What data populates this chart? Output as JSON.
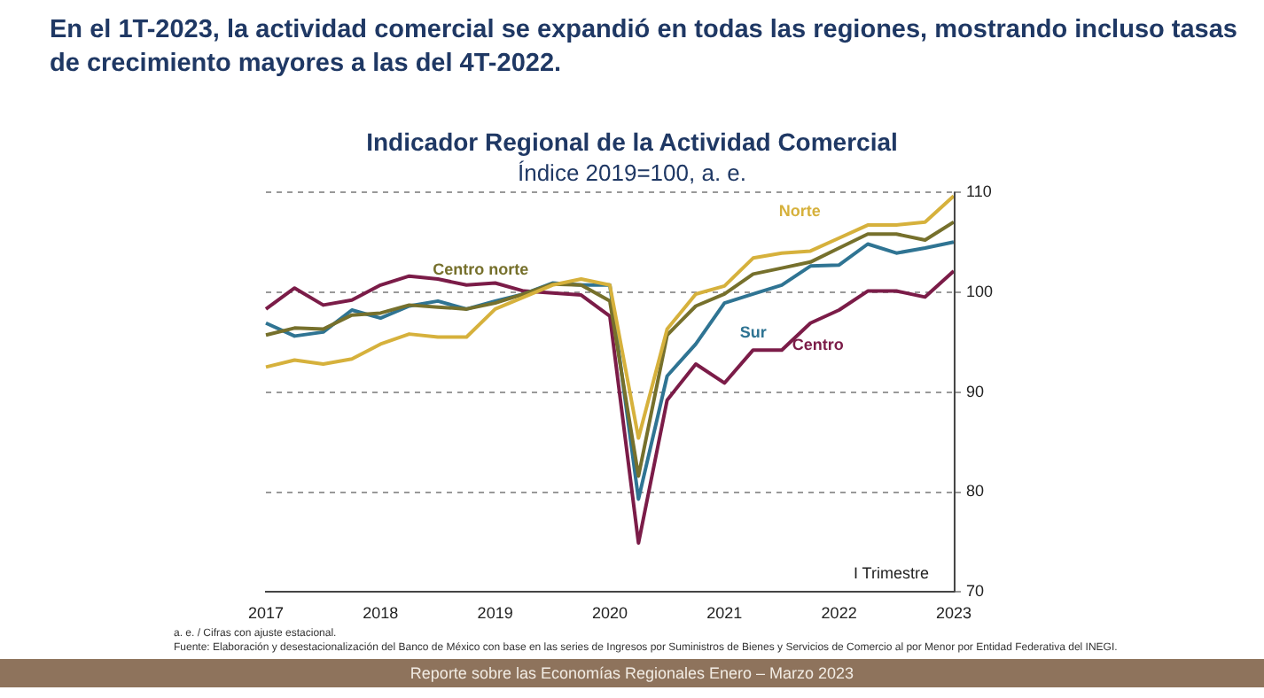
{
  "chart_data": {
    "type": "line",
    "title": "Indicador Regional de la Actividad Comercial",
    "subtitle": "Índice 2019=100, a. e.",
    "categories": [
      "2017",
      null,
      null,
      null,
      "2018",
      null,
      null,
      null,
      "2019",
      null,
      null,
      null,
      "2020",
      null,
      null,
      null,
      "2021",
      null,
      null,
      null,
      "2022",
      null,
      null,
      null,
      "2023"
    ],
    "series": [
      {
        "name": "Norte",
        "color": "#d6b13c",
        "values": [
          92.5,
          93.2,
          92.8,
          93.3,
          94.8,
          95.8,
          95.5,
          95.5,
          98.3,
          99.5,
          100.7,
          101.3,
          100.7,
          85.4,
          96.3,
          99.8,
          100.6,
          103.4,
          103.9,
          104.1,
          105.4,
          106.7,
          106.7,
          107,
          109.6
        ]
      },
      {
        "name": "Centro norte",
        "color": "#76702c",
        "values": [
          95.7,
          96.4,
          96.3,
          97.7,
          97.9,
          98.7,
          98.5,
          98.3,
          98.9,
          99.8,
          100.8,
          100.7,
          99.1,
          81.6,
          95.7,
          98.6,
          99.8,
          101.8,
          102.4,
          103,
          104.4,
          105.8,
          105.8,
          105.2,
          107
        ]
      },
      {
        "name": "Sur",
        "color": "#2f7493",
        "values": [
          96.9,
          95.6,
          96,
          98.2,
          97.4,
          98.6,
          99.1,
          98.3,
          99.1,
          99.8,
          100.9,
          100.7,
          100.7,
          79.3,
          91.6,
          94.8,
          98.9,
          99.8,
          100.7,
          102.6,
          102.7,
          104.8,
          103.9,
          104.4,
          105
        ]
      },
      {
        "name": "Centro",
        "color": "#7b1c48",
        "values": [
          98.3,
          100.4,
          98.7,
          99.2,
          100.7,
          101.6,
          101.3,
          100.7,
          100.9,
          100.1,
          99.9,
          99.7,
          97.6,
          74.9,
          89.2,
          92.8,
          90.9,
          94.2,
          94.2,
          96.9,
          98.2,
          100.1,
          100.1,
          99.5,
          102.1
        ]
      }
    ],
    "ylim": [
      70,
      110
    ],
    "yticks": [
      70,
      80,
      90,
      100,
      110
    ],
    "grid": "y",
    "legend": false,
    "marker": "none",
    "line_style": "solid",
    "annotations": [
      "En el 1T-2023, la actividad comercial se expandió en todas las regiones, mostrando incluso tasas de crecimiento mayores a las del 4T-2022.",
      "I Trimestre",
      "a. e. / Cifras con ajuste estacional.",
      "Fuente: Elaboración y desestacionalización del Banco de México con base en las series de Ingresos por Suministros de Bienes y Servicios de Comercio al por Menor por Entidad Federativa del INEGI.",
      "Reporte sobre las Economías Regionales Enero – Marzo 2023"
    ]
  }
}
